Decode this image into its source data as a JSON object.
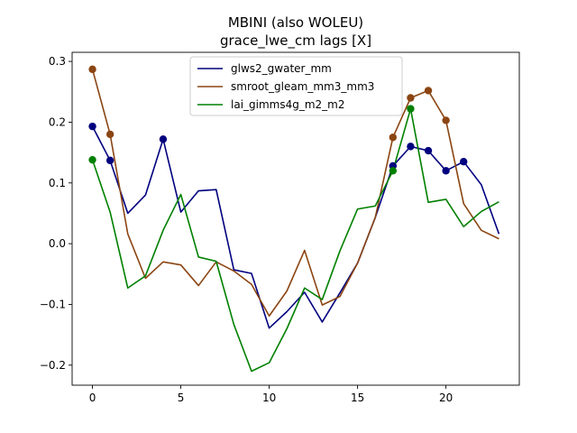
{
  "chart_data": {
    "type": "line",
    "title": "MBINI (also WOLEU)",
    "subtitle": "grace_lwe_cm lags [X]",
    "xlabel": "",
    "ylabel": "",
    "xlim": [
      -1.15,
      24.15
    ],
    "ylim": [
      -0.233,
      0.315
    ],
    "xticks": [
      0,
      5,
      10,
      15,
      20
    ],
    "yticks": [
      -0.2,
      -0.1,
      0.0,
      0.1,
      0.2,
      0.3
    ],
    "ytick_labels": [
      "−0.2",
      "−0.1",
      "0.0",
      "0.1",
      "0.2",
      "0.3"
    ],
    "legend_position": "top-center",
    "grid": false,
    "x": [
      0,
      1,
      2,
      3,
      4,
      5,
      6,
      7,
      8,
      9,
      10,
      11,
      12,
      13,
      14,
      15,
      16,
      17,
      18,
      19,
      20,
      21,
      22,
      23
    ],
    "series": [
      {
        "name": "glws2_gwater_mm",
        "color": "#00007f",
        "values": [
          0.193,
          0.137,
          0.05,
          0.08,
          0.172,
          0.052,
          0.087,
          0.089,
          -0.043,
          -0.049,
          -0.139,
          -0.112,
          -0.08,
          -0.129,
          -0.081,
          -0.032,
          0.043,
          0.128,
          0.16,
          0.153,
          0.12,
          0.135,
          0.097,
          0.016
        ],
        "markers": [
          0,
          1,
          4,
          17,
          18,
          19,
          20,
          21
        ]
      },
      {
        "name": "smroot_gleam_mm3_mm3",
        "color": "#8b4513",
        "values": [
          0.287,
          0.18,
          0.016,
          -0.057,
          -0.03,
          -0.035,
          -0.069,
          -0.03,
          -0.045,
          -0.067,
          -0.119,
          -0.078,
          -0.011,
          -0.101,
          -0.087,
          -0.032,
          0.043,
          0.175,
          0.24,
          0.252,
          0.203,
          0.066,
          0.022,
          0.008
        ],
        "markers": [
          0,
          1,
          17,
          18,
          19,
          20
        ]
      },
      {
        "name": "lai_gimms4g_m2_m2",
        "color": "#008000",
        "values": [
          0.138,
          0.052,
          -0.073,
          -0.053,
          0.022,
          0.081,
          -0.022,
          -0.029,
          -0.133,
          -0.21,
          -0.196,
          -0.14,
          -0.073,
          -0.092,
          -0.012,
          0.057,
          0.062,
          0.12,
          0.222,
          0.068,
          0.073,
          0.028,
          0.053,
          0.069
        ],
        "markers": [
          0,
          17,
          18
        ]
      }
    ]
  }
}
